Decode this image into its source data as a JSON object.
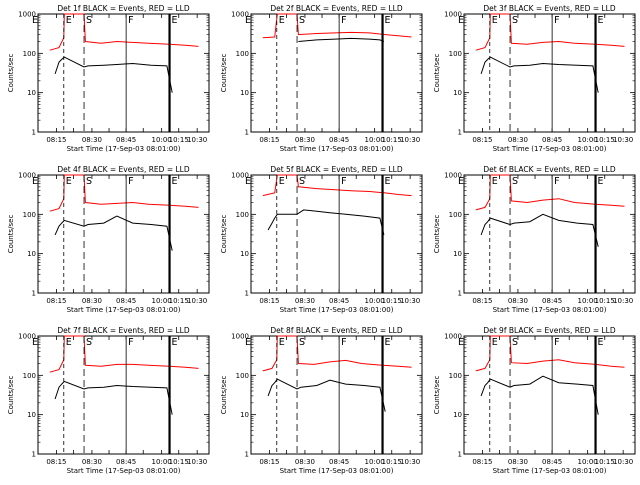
{
  "figure": {
    "xlabel": "Start Time (17-Sep-03 08:01:00)",
    "ylabel": "Counts/sec",
    "xtick_labels": [
      "08:15",
      "08:30",
      "08:45",
      "10:00",
      "10:15",
      "10:30"
    ],
    "ytick_labels": [
      "1",
      "10",
      "100",
      "1000"
    ],
    "colors": {
      "events": "#000000",
      "lld": "#ff0000",
      "background": "#ffffff"
    }
  },
  "chart_data": [
    {
      "type": "line",
      "title": "Det 1f BLACK = Events, RED = LLD",
      "xlabel": "Start Time (17-Sep-03 08:01:00)",
      "ylabel": "Counts/sec",
      "yscale": "log",
      "ylim": [
        1,
        1000
      ],
      "xticks": [
        "08:15",
        "08:30",
        "08:45",
        "10:00",
        "10:15",
        "10:30"
      ],
      "markers": [
        {
          "label": "E"
        },
        {
          "label": "S"
        },
        {
          "label": "F"
        },
        {
          "label": "E"
        }
      ],
      "series": [
        {
          "color": "#ff0000",
          "x": [
            0.45,
            0.8,
            0.98,
            1.0,
            1.75,
            1.8,
            2.4,
            3.0,
            3.6,
            4.2,
            5.0,
            5.6,
            6.1
          ],
          "y": [
            120,
            140,
            250,
            1000,
            1000,
            200,
            180,
            200,
            190,
            180,
            170,
            160,
            150
          ]
        },
        {
          "color": "#000000",
          "x": [
            0.65,
            0.8,
            0.9,
            1.0,
            1.75,
            1.9,
            2.5,
            3.0,
            3.6,
            4.3,
            4.9,
            5.1
          ],
          "y": [
            30,
            60,
            70,
            80,
            45,
            48,
            50,
            52,
            55,
            50,
            48,
            10
          ]
        }
      ]
    },
    {
      "type": "line",
      "title": "Det 2f BLACK = Events, RED = LLD",
      "xlabel": "Start Time (17-Sep-03 08:01:00)",
      "ylabel": "Counts/sec",
      "yscale": "log",
      "ylim": [
        1,
        1000
      ],
      "xticks": [
        "08:15",
        "08:30",
        "08:45",
        "10:00",
        "10:15",
        "10:30"
      ],
      "markers": [
        {
          "label": "E"
        },
        {
          "label": "S"
        },
        {
          "label": "F"
        },
        {
          "label": "E"
        }
      ],
      "series": [
        {
          "color": "#ff0000",
          "x": [
            0.45,
            0.9,
            1.0,
            1.75,
            1.8,
            2.5,
            3.2,
            3.8,
            4.5,
            5.1,
            5.6,
            6.1
          ],
          "y": [
            250,
            260,
            1000,
            1000,
            300,
            320,
            330,
            340,
            330,
            300,
            280,
            260
          ]
        },
        {
          "color": "#000000",
          "x": [
            1.8,
            2.5,
            3.2,
            3.8,
            4.5,
            4.9,
            5.05
          ],
          "y": [
            200,
            220,
            230,
            240,
            230,
            220,
            200
          ]
        }
      ]
    },
    {
      "type": "line",
      "title": "Det 3f BLACK = Events, RED = LLD",
      "xlabel": "Start Time (17-Sep-03 08:01:00)",
      "ylabel": "Counts/sec",
      "yscale": "log",
      "ylim": [
        1,
        1000
      ],
      "xticks": [
        "08:15",
        "08:30",
        "08:45",
        "10:00",
        "10:15",
        "10:30"
      ],
      "markers": [
        {
          "label": "E"
        },
        {
          "label": "S"
        },
        {
          "label": "F"
        },
        {
          "label": "E"
        }
      ],
      "series": [
        {
          "color": "#ff0000",
          "x": [
            0.45,
            0.8,
            0.98,
            1.0,
            1.75,
            1.8,
            2.4,
            3.0,
            3.6,
            4.2,
            5.0,
            5.6,
            6.1
          ],
          "y": [
            120,
            140,
            250,
            1000,
            1000,
            180,
            170,
            190,
            200,
            180,
            170,
            160,
            150
          ]
        },
        {
          "color": "#000000",
          "x": [
            0.65,
            0.8,
            0.9,
            1.0,
            1.75,
            1.9,
            2.5,
            3.0,
            3.6,
            4.3,
            4.9,
            5.1
          ],
          "y": [
            30,
            60,
            70,
            80,
            45,
            48,
            50,
            55,
            52,
            50,
            48,
            10
          ]
        }
      ]
    },
    {
      "type": "line",
      "title": "Det 4f BLACK = Events, RED = LLD",
      "xlabel": "Start Time (17-Sep-03 08:01:00)",
      "ylabel": "Counts/sec",
      "yscale": "log",
      "ylim": [
        1,
        1000
      ],
      "xticks": [
        "08:15",
        "08:30",
        "08:45",
        "10:00",
        "10:15",
        "10:30"
      ],
      "markers": [
        {
          "label": "E"
        },
        {
          "label": "S"
        },
        {
          "label": "F"
        },
        {
          "label": "E"
        }
      ],
      "series": [
        {
          "color": "#ff0000",
          "x": [
            0.45,
            0.8,
            0.98,
            1.0,
            1.75,
            1.8,
            2.4,
            3.0,
            3.6,
            4.2,
            5.0,
            5.6,
            6.1
          ],
          "y": [
            120,
            140,
            250,
            1000,
            1000,
            200,
            180,
            190,
            200,
            180,
            170,
            160,
            150
          ]
        },
        {
          "color": "#000000",
          "x": [
            0.65,
            0.8,
            0.9,
            1.0,
            1.75,
            1.9,
            2.5,
            3.0,
            3.6,
            4.3,
            4.9,
            5.1
          ],
          "y": [
            30,
            50,
            60,
            70,
            50,
            55,
            60,
            90,
            60,
            55,
            50,
            12
          ]
        }
      ]
    },
    {
      "type": "line",
      "title": "Det 5f BLACK = Events, RED = LLD",
      "xlabel": "Start Time (17-Sep-03 08:01:00)",
      "ylabel": "Counts/sec",
      "yscale": "log",
      "ylim": [
        1,
        1000
      ],
      "xticks": [
        "08:15",
        "08:30",
        "08:45",
        "10:00",
        "10:15",
        "10:30"
      ],
      "markers": [
        {
          "label": "E"
        },
        {
          "label": "S"
        },
        {
          "label": "F"
        },
        {
          "label": "E"
        }
      ],
      "series": [
        {
          "color": "#ff0000",
          "x": [
            0.45,
            0.9,
            1.0,
            1.75,
            1.8,
            2.5,
            3.2,
            3.8,
            4.5,
            5.1,
            5.6,
            6.1
          ],
          "y": [
            300,
            350,
            1000,
            1000,
            500,
            450,
            420,
            400,
            380,
            350,
            320,
            300
          ]
        },
        {
          "color": "#000000",
          "x": [
            0.65,
            0.8,
            0.9,
            1.0,
            1.75,
            2.0,
            2.5,
            3.0,
            3.6,
            4.3,
            4.9,
            5.05
          ],
          "y": [
            40,
            60,
            80,
            100,
            100,
            130,
            120,
            110,
            100,
            90,
            80,
            30
          ]
        }
      ]
    },
    {
      "type": "line",
      "title": "Det 6f BLACK = Events, RED = LLD",
      "xlabel": "Start Time (17-Sep-03 08:01:00)",
      "ylabel": "Counts/sec",
      "yscale": "log",
      "ylim": [
        1,
        1000
      ],
      "xticks": [
        "08:15",
        "08:30",
        "08:45",
        "10:00",
        "10:15",
        "10:30"
      ],
      "markers": [
        {
          "label": "E"
        },
        {
          "label": "S"
        },
        {
          "label": "F"
        },
        {
          "label": "E"
        }
      ],
      "series": [
        {
          "color": "#ff0000",
          "x": [
            0.45,
            0.8,
            0.98,
            1.0,
            1.75,
            1.8,
            2.4,
            3.0,
            3.6,
            4.2,
            5.0,
            5.6,
            6.1
          ],
          "y": [
            130,
            150,
            250,
            1000,
            1000,
            220,
            200,
            230,
            250,
            200,
            180,
            170,
            160
          ]
        },
        {
          "color": "#000000",
          "x": [
            0.65,
            0.8,
            0.9,
            1.0,
            1.75,
            1.9,
            2.5,
            3.0,
            3.6,
            4.3,
            4.9,
            5.1
          ],
          "y": [
            30,
            55,
            65,
            80,
            55,
            60,
            65,
            100,
            70,
            60,
            55,
            15
          ]
        }
      ]
    },
    {
      "type": "line",
      "title": "Det 7f BLACK = Events, RED = LLD",
      "xlabel": "Start Time (17-Sep-03 08:01:00)",
      "ylabel": "Counts/sec",
      "yscale": "log",
      "ylim": [
        1,
        1000
      ],
      "xticks": [
        "08:15",
        "08:30",
        "08:45",
        "10:00",
        "10:15",
        "10:30"
      ],
      "markers": [
        {
          "label": "E"
        },
        {
          "label": "S"
        },
        {
          "label": "F"
        },
        {
          "label": "E"
        }
      ],
      "series": [
        {
          "color": "#ff0000",
          "x": [
            0.45,
            0.8,
            0.98,
            1.0,
            1.75,
            1.8,
            2.4,
            3.0,
            3.6,
            4.2,
            5.0,
            5.6,
            6.1
          ],
          "y": [
            120,
            140,
            250,
            1000,
            1000,
            180,
            170,
            190,
            190,
            180,
            170,
            160,
            150
          ]
        },
        {
          "color": "#000000",
          "x": [
            0.65,
            0.8,
            0.9,
            1.0,
            1.75,
            1.9,
            2.5,
            3.0,
            3.6,
            4.3,
            4.9,
            5.1
          ],
          "y": [
            25,
            50,
            60,
            70,
            45,
            48,
            50,
            55,
            52,
            50,
            48,
            10
          ]
        }
      ]
    },
    {
      "type": "line",
      "title": "Det 8f BLACK = Events, RED = LLD",
      "xlabel": "Start Time (17-Sep-03 08:01:00)",
      "ylabel": "Counts/sec",
      "yscale": "log",
      "ylim": [
        1,
        1000
      ],
      "xticks": [
        "08:15",
        "08:30",
        "08:45",
        "10:00",
        "10:15",
        "10:30"
      ],
      "markers": [
        {
          "label": "E"
        },
        {
          "label": "S"
        },
        {
          "label": "F"
        },
        {
          "label": "E"
        }
      ],
      "series": [
        {
          "color": "#ff0000",
          "x": [
            0.45,
            0.8,
            0.98,
            1.0,
            1.75,
            1.8,
            2.4,
            3.0,
            3.6,
            4.2,
            5.0,
            5.6,
            6.1
          ],
          "y": [
            130,
            150,
            250,
            1000,
            1000,
            200,
            190,
            220,
            240,
            200,
            180,
            170,
            160
          ]
        },
        {
          "color": "#000000",
          "x": [
            0.65,
            0.8,
            0.9,
            1.0,
            1.75,
            1.9,
            2.5,
            3.0,
            3.6,
            4.3,
            4.9,
            5.1
          ],
          "y": [
            30,
            55,
            65,
            80,
            45,
            50,
            55,
            75,
            60,
            55,
            50,
            12
          ]
        }
      ]
    },
    {
      "type": "line",
      "title": "Det 9f BLACK = Events, RED = LLD",
      "xlabel": "Start Time (17-Sep-03 08:01:00)",
      "ylabel": "Counts/sec",
      "yscale": "log",
      "ylim": [
        1,
        1000
      ],
      "xticks": [
        "08:15",
        "08:30",
        "08:45",
        "10:00",
        "10:15",
        "10:30"
      ],
      "markers": [
        {
          "label": "E"
        },
        {
          "label": "S"
        },
        {
          "label": "F"
        },
        {
          "label": "E"
        }
      ],
      "series": [
        {
          "color": "#ff0000",
          "x": [
            0.45,
            0.8,
            0.98,
            1.0,
            1.75,
            1.8,
            2.4,
            3.0,
            3.6,
            4.2,
            5.0,
            5.6,
            6.1
          ],
          "y": [
            130,
            150,
            250,
            1000,
            1000,
            210,
            200,
            230,
            250,
            210,
            190,
            170,
            160
          ]
        },
        {
          "color": "#000000",
          "x": [
            0.65,
            0.8,
            0.9,
            1.0,
            1.75,
            1.9,
            2.5,
            3.0,
            3.6,
            4.3,
            4.9,
            5.1
          ],
          "y": [
            30,
            55,
            65,
            80,
            50,
            55,
            60,
            95,
            65,
            60,
            55,
            10
          ]
        }
      ]
    }
  ]
}
